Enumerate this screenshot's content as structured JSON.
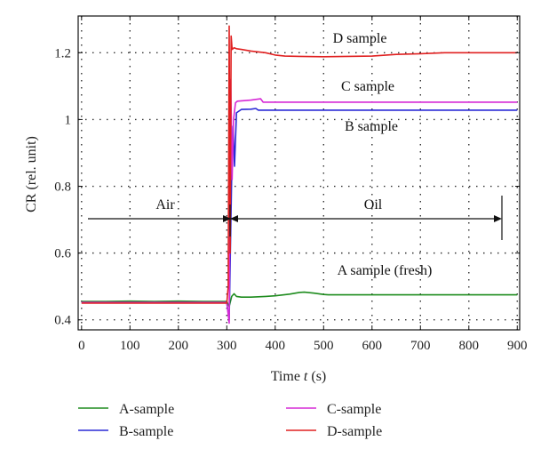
{
  "chart_data": {
    "type": "line",
    "xlabel_prefix": "Time ",
    "xlabel_var": "t",
    "xlabel_suffix": " (s)",
    "ylabel": "CR (rel. unit)",
    "xlim": [
      -7,
      905
    ],
    "ylim": [
      0.37,
      1.31
    ],
    "xticks": [
      0,
      100,
      200,
      300,
      400,
      500,
      600,
      700,
      800,
      900
    ],
    "yticks": [
      0.4,
      0.6,
      0.8,
      1,
      1.2
    ],
    "ytick_labels": [
      "0.4",
      "0.6",
      "0.8",
      "1",
      "1.2"
    ],
    "grid": true,
    "legend_position": "bottom",
    "series": [
      {
        "name": "A-sample",
        "color": "#1e8c1e",
        "x": [
          0,
          50,
          100,
          150,
          200,
          250,
          300,
          305,
          310,
          315,
          320,
          330,
          350,
          380,
          400,
          430,
          450,
          460,
          480,
          500,
          510,
          600,
          700,
          800,
          900
        ],
        "y": [
          0.455,
          0.455,
          0.456,
          0.455,
          0.456,
          0.455,
          0.455,
          0.44,
          0.47,
          0.478,
          0.47,
          0.468,
          0.468,
          0.47,
          0.472,
          0.477,
          0.482,
          0.483,
          0.48,
          0.476,
          0.475,
          0.475,
          0.475,
          0.475,
          0.475
        ]
      },
      {
        "name": "B-sample",
        "color": "#2a2ad6",
        "x": [
          0,
          100,
          200,
          300,
          305,
          310,
          313,
          316,
          320,
          330,
          350,
          360,
          365,
          380,
          400,
          500,
          600,
          700,
          800,
          900
        ],
        "y": [
          0.451,
          0.451,
          0.451,
          0.451,
          0.4,
          0.83,
          0.98,
          0.86,
          1.02,
          1.03,
          1.031,
          1.033,
          1.028,
          1.028,
          1.028,
          1.028,
          1.028,
          1.028,
          1.028,
          1.028
        ]
      },
      {
        "name": "C-sample",
        "color": "#d62ad6",
        "x": [
          0,
          100,
          200,
          300,
          305,
          308,
          311,
          314,
          318,
          322,
          330,
          350,
          370,
          375,
          380,
          400,
          500,
          600,
          700,
          800,
          900
        ],
        "y": [
          0.452,
          0.452,
          0.452,
          0.452,
          0.39,
          1.12,
          0.82,
          1.0,
          1.05,
          1.055,
          1.056,
          1.058,
          1.062,
          1.052,
          1.052,
          1.052,
          1.052,
          1.052,
          1.052,
          1.052,
          1.052
        ]
      },
      {
        "name": "D-sample",
        "color": "#e02020",
        "x": [
          0,
          100,
          200,
          300,
          303,
          305,
          307,
          309,
          311,
          315,
          320,
          330,
          350,
          380,
          400,
          420,
          450,
          500,
          550,
          600,
          650,
          700,
          750,
          800,
          850,
          900
        ],
        "y": [
          0.45,
          0.45,
          0.45,
          0.45,
          0.5,
          1.28,
          0.6,
          1.25,
          1.21,
          1.215,
          1.212,
          1.21,
          1.205,
          1.2,
          1.193,
          1.19,
          1.189,
          1.188,
          1.189,
          1.19,
          1.195,
          1.197,
          1.2,
          1.2,
          1.2,
          1.2
        ]
      }
    ],
    "annotations": {
      "air": "Air",
      "oil": "Oil",
      "a_sample": "A sample (fresh)",
      "b_sample": "B sample",
      "c_sample": "C sample",
      "d_sample": "D sample"
    }
  }
}
